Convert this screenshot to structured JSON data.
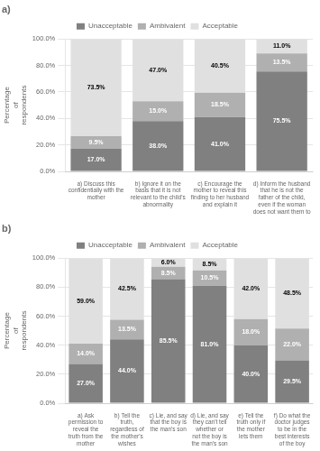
{
  "chart_data": [
    {
      "type": "bar",
      "title": "a)",
      "stacked": true,
      "grid": true,
      "legend": "top",
      "data_labels": true,
      "ylabel": "Percentage\nof\nrespondents",
      "categories": [
        "a) Discuss this\nconfidentially with the\nmother",
        "b) Ignore it on the\nbasis that it is not\nrelevant to the child's\nabnormality",
        "c) Encourage the\nmother to reveal this\nfinding to her husband\nand explain it",
        "d) Inform the husband\nthat he is not the\nfather of the child,\neven if the woman\ndoes not want them to"
      ],
      "series": [
        {
          "name": "Unacceptable",
          "color": "#808080",
          "values": [
            17.0,
            38.0,
            41.0,
            75.5
          ],
          "value_labels": [
            "17.0%",
            "38.0%",
            "41.0%",
            "75.5%"
          ]
        },
        {
          "name": "Ambivalent",
          "color": "#b0b0b0",
          "values": [
            9.5,
            15.0,
            18.5,
            13.5
          ],
          "value_labels": [
            "9.5%",
            "15.0%",
            "18.5%",
            "13.5%"
          ]
        },
        {
          "name": "Acceptable",
          "color": "#e0e0e0",
          "values": [
            73.5,
            47.0,
            40.5,
            11.0
          ],
          "value_labels": [
            "73.5%",
            "47.0%",
            "40.5%",
            "11.0%"
          ]
        }
      ],
      "ylim": [
        0,
        100
      ],
      "yticks": [
        {
          "value": 0,
          "label": "0.0%"
        },
        {
          "value": 20,
          "label": "20.0%"
        },
        {
          "value": 40,
          "label": "40.0%"
        },
        {
          "value": 60,
          "label": "60.0%"
        },
        {
          "value": 80,
          "label": "80.0%"
        },
        {
          "value": 100,
          "label": "100.0%"
        }
      ]
    },
    {
      "type": "bar",
      "title": "b)",
      "stacked": true,
      "grid": true,
      "legend": "top",
      "data_labels": true,
      "ylabel": "Percentage\nof\nrespondents",
      "categories": [
        "a) Ask\npermission to\nreveal the\ntruth from the\nmother",
        "b) Tell the\ntruth,\nregardless of\nthe mother's\nwishes",
        "c) Lie, and say\nthat the boy is\nthe man's son",
        "d) Lie, and say\nthey can't tell\nwhether or\nnot the boy is\nthe man's son",
        "e) Tell the\ntruth only if\nthe mother\nlets them",
        "f) Do what the\ndoctor judges\nto be in the\nbest interests\nof the boy"
      ],
      "series": [
        {
          "name": "Unacceptable",
          "color": "#808080",
          "values": [
            27.0,
            44.0,
            85.5,
            81.0,
            40.0,
            29.5
          ],
          "value_labels": [
            "27.0%",
            "44.0%",
            "85.5%",
            "81.0%",
            "40.0%",
            "29.5%"
          ]
        },
        {
          "name": "Ambivalent",
          "color": "#b0b0b0",
          "values": [
            14.0,
            13.5,
            8.5,
            10.5,
            18.0,
            22.0
          ],
          "value_labels": [
            "14.0%",
            "13.5%",
            "8.5%",
            "10.5%",
            "18.0%",
            "22.0%"
          ]
        },
        {
          "name": "Acceptable",
          "color": "#e0e0e0",
          "values": [
            59.0,
            42.5,
            6.0,
            8.5,
            42.0,
            48.5
          ],
          "value_labels": [
            "59.0%",
            "42.5%",
            "6.0%",
            "8.5%",
            "42.0%",
            "48.5%"
          ]
        }
      ],
      "ylim": [
        0,
        100
      ],
      "yticks": [
        {
          "value": 0,
          "label": "0.0%"
        },
        {
          "value": 20,
          "label": "20.0%"
        },
        {
          "value": 40,
          "label": "40.0%"
        },
        {
          "value": 60,
          "label": "60.0%"
        },
        {
          "value": 80,
          "label": "80.0%"
        },
        {
          "value": 100,
          "label": "100.0%"
        }
      ]
    }
  ]
}
